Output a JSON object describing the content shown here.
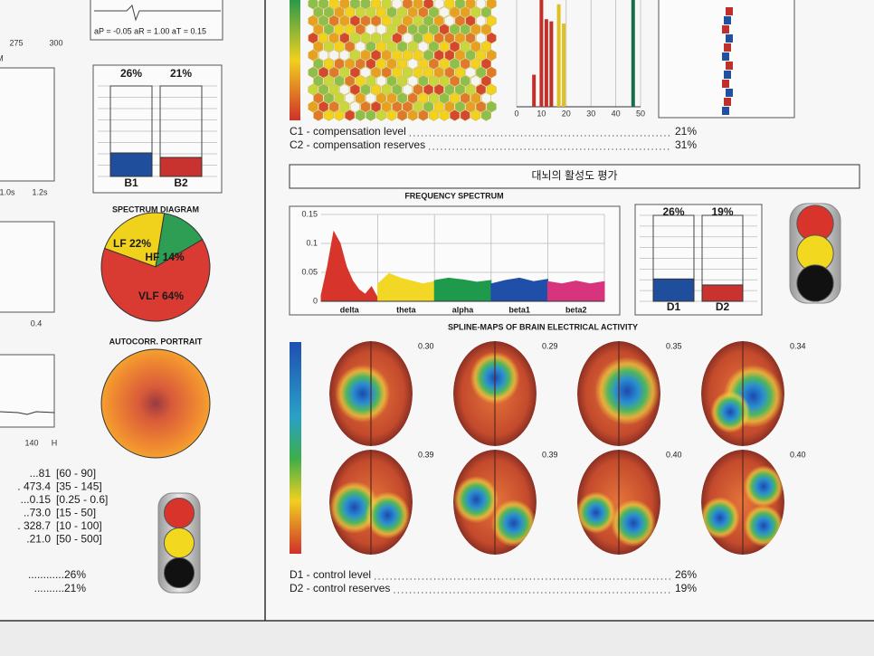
{
  "left": {
    "ecg_params": "aP = -0.05  aR = 1.00  aT = 0.15",
    "fragments": [
      "275",
      "300",
      "M",
      "1.0s",
      "1.2s",
      "0.4",
      "140",
      "H"
    ],
    "b_chart": {
      "type": "bar",
      "categories": [
        "B1",
        "B2"
      ],
      "values": [
        26,
        21
      ],
      "value_labels": [
        "26%",
        "21%"
      ],
      "colors": [
        "#1f4e9c",
        "#c8322f"
      ],
      "ylim": [
        0,
        100
      ]
    },
    "spectrum_diagram": {
      "type": "pie",
      "title": "SPECTRUM DIAGRAM",
      "values": [
        22,
        14,
        64
      ],
      "value_labels": [
        "LF 22%",
        "HF 14%",
        "VLF 64%"
      ],
      "colors": [
        "#f0d21c",
        "#2e9e55",
        "#d93a32"
      ]
    },
    "autocorr_title": "AUTOCORR. PORTRAIT",
    "indicators": [
      {
        "value": "...81",
        "range": "[60 - 90]"
      },
      {
        "value": ". 473.4",
        "range": "[35 - 145]"
      },
      {
        "value": "...0.15",
        "range": "[0.25 - 0.6]"
      },
      {
        "value": "..73.0",
        "range": "[15 - 50]"
      },
      {
        "value": ". 328.7",
        "range": "[10 - 100]"
      },
      {
        "value": ".21.0",
        "range": "[50 - 500]"
      }
    ],
    "summary": [
      "............26%",
      "..........21%"
    ]
  },
  "right": {
    "histogram": {
      "type": "bar",
      "xlim": [
        0,
        50
      ],
      "xticks": [
        0,
        10,
        20,
        30,
        40,
        50
      ],
      "ylim": [
        0,
        100
      ],
      "x": [
        7,
        10,
        12,
        14,
        17,
        19,
        47
      ],
      "values": [
        30,
        100,
        82,
        80,
        96,
        78,
        100
      ],
      "colors": [
        "#c0302a",
        "#c0302a",
        "#c0302a",
        "#c0302a",
        "#e0c020",
        "#e0c020",
        "#1a6b4a"
      ]
    },
    "compensation": [
      {
        "label": "C1 - compensation level",
        "value": "21%"
      },
      {
        "label": "C2 - compensation reserves",
        "value": "31%"
      }
    ],
    "section_title": "대뇌의 활성도 평가",
    "frequency_spectrum": {
      "type": "area",
      "title": "FREQUENCY SPECTRUM",
      "ylim": [
        0,
        0.15
      ],
      "yticks": [
        0,
        0.05,
        0.1,
        0.15
      ],
      "bands": [
        {
          "name": "delta",
          "color": "#d7342b",
          "values": [
            0.01,
            0.06,
            0.12,
            0.1,
            0.06,
            0.035,
            0.02,
            0.012,
            0.025,
            0.005
          ]
        },
        {
          "name": "theta",
          "color": "#f2d824",
          "values": [
            0.03,
            0.048,
            0.04,
            0.035,
            0.03,
            0.034
          ]
        },
        {
          "name": "alpha",
          "color": "#1f9a4c",
          "values": [
            0.036,
            0.04,
            0.037,
            0.033,
            0.036
          ]
        },
        {
          "name": "beta1",
          "color": "#1f4fa8",
          "values": [
            0.03,
            0.036,
            0.04,
            0.034,
            0.038
          ]
        },
        {
          "name": "beta2",
          "color": "#d8347e",
          "values": [
            0.034,
            0.03,
            0.035,
            0.03,
            0.034
          ]
        }
      ]
    },
    "d_chart": {
      "type": "bar",
      "categories": [
        "D1",
        "D2"
      ],
      "values": [
        26,
        19
      ],
      "value_labels": [
        "26%",
        "19%"
      ],
      "colors": [
        "#1f4e9c",
        "#c8322f"
      ],
      "ylim": [
        0,
        100
      ]
    },
    "spline_maps": {
      "title": "SPLINE-MAPS OF BRAIN ELECTRICAL ACTIVITY",
      "values": [
        0.3,
        0.29,
        0.35,
        0.34,
        0.39,
        0.39,
        0.4,
        0.4
      ],
      "value_labels": [
        "0.30",
        "0.29",
        "0.35",
        "0.34",
        "0.39",
        "0.39",
        "0.40",
        "0.40"
      ]
    },
    "control": [
      {
        "label": "D1 - control level",
        "value": "26%"
      },
      {
        "label": "D2 - control reserves",
        "value": "19%"
      }
    ]
  }
}
